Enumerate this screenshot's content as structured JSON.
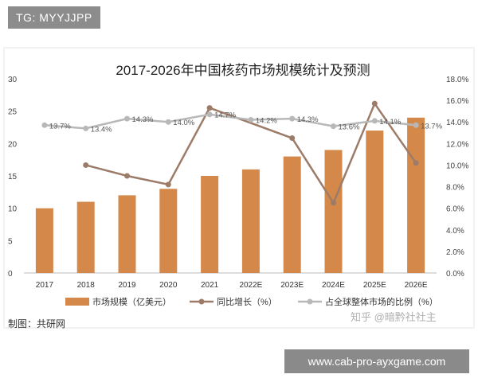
{
  "badges": {
    "tg": "TG: MYYJJPP",
    "url": "www.cab-pro-ayxgame.com"
  },
  "chart_data": {
    "type": "bar",
    "title": "2017-2026年中国核药市场规模统计及预测",
    "categories": [
      "2017",
      "2018",
      "2019",
      "2020",
      "2021",
      "2022E",
      "2023E",
      "2024E",
      "2025E",
      "2026E"
    ],
    "left_ticks": [
      "30",
      "25",
      "20",
      "15",
      "10",
      "5",
      "0"
    ],
    "right_ticks": [
      "18.0%",
      "16.0%",
      "14.0%",
      "12.0%",
      "10.0%",
      "8.0%",
      "6.0%",
      "4.0%",
      "2.0%",
      "0.0%"
    ],
    "ylim_left": [
      0,
      30
    ],
    "ylim_right": [
      0,
      18
    ],
    "series": [
      {
        "name": "市场规模（亿美元）",
        "type": "bar",
        "axis": "left",
        "color": "#d4894a",
        "values": [
          10,
          11,
          12,
          13,
          15,
          16,
          18,
          19,
          22,
          24
        ]
      },
      {
        "name": "同比增长（%）",
        "type": "line",
        "axis": "right",
        "color": "#9c7b68",
        "values": [
          null,
          10.0,
          9.0,
          8.2,
          15.3,
          null,
          12.5,
          6.5,
          15.7,
          10.2
        ]
      },
      {
        "name": "占全球整体市场的比例（%）",
        "type": "line",
        "axis": "right",
        "color": "#b8b8b8",
        "values": [
          13.7,
          13.4,
          14.3,
          14.0,
          14.7,
          14.2,
          14.3,
          13.6,
          14.1,
          13.7
        ],
        "labels": [
          "13.7%",
          "13.4%",
          "14.3%",
          "14.0%",
          "14.7%",
          "14.2%",
          "14.3%",
          "13.6%",
          "14.1%",
          "13.7%"
        ]
      }
    ],
    "grid": false,
    "legend": "bottom"
  },
  "source_note": "制图：共研网",
  "watermark": "知乎 @暗黔社社主"
}
